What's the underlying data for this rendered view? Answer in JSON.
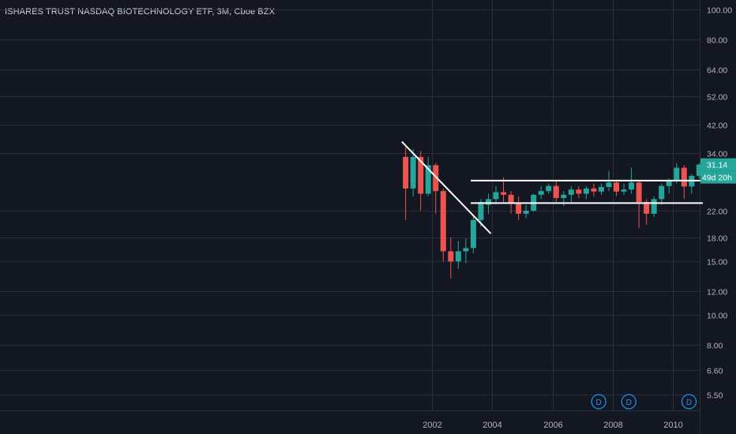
{
  "header": {
    "title": "ISHARES TRUST NASDAQ BIOTECHNOLOGY ETF, 3M, Cboe BZX"
  },
  "colors": {
    "background": "#131722",
    "up": "#26a69a",
    "down": "#ef5350",
    "grid": "#2a2e39",
    "axis_text": "#b2b5be",
    "line": "#ffffff",
    "dividend": "#2196f3"
  },
  "chart_data": {
    "type": "candlestick",
    "interval": "3M",
    "y_scale": "log",
    "ylim": [
      5.0,
      110
    ],
    "y_ticks": [
      100,
      80,
      64,
      52,
      42,
      34,
      22,
      18,
      15,
      12,
      10,
      8,
      6.6,
      5.5
    ],
    "y_tick_labels": [
      "100.00",
      "80.00",
      "64.00",
      "52.00",
      "42.00",
      "34.00",
      "22.00",
      "18.00",
      "15.00",
      "12.00",
      "10.00",
      "8.00",
      "6.60",
      "5.50"
    ],
    "x_range": [
      "2000-10-01",
      "2010-12-31"
    ],
    "x_ticks": [
      "2002",
      "2004",
      "2006",
      "2008",
      "2010"
    ],
    "grid": true,
    "candles": [
      {
        "date": "2001-01-01",
        "open": 33.0,
        "high": 35.5,
        "low": 20.5,
        "close": 26.0
      },
      {
        "date": "2001-04-01",
        "open": 26.0,
        "high": 35.0,
        "low": 24.5,
        "close": 33.0
      },
      {
        "date": "2001-07-01",
        "open": 33.0,
        "high": 34.5,
        "low": 22.0,
        "close": 25.0
      },
      {
        "date": "2001-10-01",
        "open": 25.0,
        "high": 33.0,
        "low": 24.5,
        "close": 31.0
      },
      {
        "date": "2002-01-01",
        "open": 31.0,
        "high": 31.5,
        "low": 21.5,
        "close": 25.5
      },
      {
        "date": "2002-04-01",
        "open": 25.5,
        "high": 26.0,
        "low": 15.0,
        "close": 16.2
      },
      {
        "date": "2002-07-01",
        "open": 16.2,
        "high": 18.0,
        "low": 13.2,
        "close": 15.0
      },
      {
        "date": "2002-10-01",
        "open": 15.0,
        "high": 17.5,
        "low": 14.2,
        "close": 16.2
      },
      {
        "date": "2003-01-01",
        "open": 16.2,
        "high": 17.8,
        "low": 14.8,
        "close": 16.6
      },
      {
        "date": "2003-04-01",
        "open": 16.6,
        "high": 21.0,
        "low": 16.0,
        "close": 20.5
      },
      {
        "date": "2003-07-01",
        "open": 20.5,
        "high": 24.0,
        "low": 19.5,
        "close": 23.5
      },
      {
        "date": "2003-10-01",
        "open": 23.0,
        "high": 25.0,
        "low": 21.5,
        "close": 24.0
      },
      {
        "date": "2004-01-01",
        "open": 24.0,
        "high": 26.5,
        "low": 23.0,
        "close": 25.3
      },
      {
        "date": "2004-04-01",
        "open": 25.3,
        "high": 28.3,
        "low": 23.5,
        "close": 24.8
      },
      {
        "date": "2004-07-01",
        "open": 24.8,
        "high": 25.5,
        "low": 21.5,
        "close": 23.4
      },
      {
        "date": "2004-10-01",
        "open": 23.4,
        "high": 24.5,
        "low": 20.5,
        "close": 21.5
      },
      {
        "date": "2005-01-01",
        "open": 21.5,
        "high": 23.0,
        "low": 20.8,
        "close": 22.0
      },
      {
        "date": "2005-04-01",
        "open": 22.0,
        "high": 25.0,
        "low": 21.8,
        "close": 24.8
      },
      {
        "date": "2005-07-01",
        "open": 24.8,
        "high": 26.5,
        "low": 24.0,
        "close": 25.5
      },
      {
        "date": "2005-10-01",
        "open": 25.5,
        "high": 27.0,
        "low": 25.0,
        "close": 26.5
      },
      {
        "date": "2006-01-01",
        "open": 26.5,
        "high": 27.5,
        "low": 23.5,
        "close": 24.2
      },
      {
        "date": "2006-04-01",
        "open": 24.2,
        "high": 25.5,
        "low": 22.8,
        "close": 24.8
      },
      {
        "date": "2006-07-01",
        "open": 24.8,
        "high": 26.5,
        "low": 23.5,
        "close": 25.8
      },
      {
        "date": "2006-10-01",
        "open": 25.8,
        "high": 26.5,
        "low": 24.2,
        "close": 25.0
      },
      {
        "date": "2007-01-01",
        "open": 25.0,
        "high": 26.5,
        "low": 24.0,
        "close": 26.0
      },
      {
        "date": "2007-04-01",
        "open": 26.0,
        "high": 27.0,
        "low": 24.5,
        "close": 25.4
      },
      {
        "date": "2007-07-01",
        "open": 25.4,
        "high": 27.0,
        "low": 24.8,
        "close": 26.3
      },
      {
        "date": "2007-10-01",
        "open": 26.3,
        "high": 29.7,
        "low": 25.5,
        "close": 27.2
      },
      {
        "date": "2008-01-01",
        "open": 27.2,
        "high": 27.8,
        "low": 24.5,
        "close": 25.4
      },
      {
        "date": "2008-04-01",
        "open": 25.4,
        "high": 27.0,
        "low": 24.8,
        "close": 25.8
      },
      {
        "date": "2008-07-01",
        "open": 25.8,
        "high": 30.4,
        "low": 25.0,
        "close": 27.2
      },
      {
        "date": "2008-10-01",
        "open": 27.2,
        "high": 27.5,
        "low": 19.3,
        "close": 23.5
      },
      {
        "date": "2009-01-01",
        "open": 23.5,
        "high": 24.0,
        "low": 19.8,
        "close": 21.5
      },
      {
        "date": "2009-04-01",
        "open": 21.5,
        "high": 24.5,
        "low": 21.0,
        "close": 24.0
      },
      {
        "date": "2009-07-01",
        "open": 24.0,
        "high": 27.0,
        "low": 23.0,
        "close": 26.5
      },
      {
        "date": "2009-10-01",
        "open": 26.5,
        "high": 28.0,
        "low": 25.0,
        "close": 27.6
      },
      {
        "date": "2010-01-01",
        "open": 27.6,
        "high": 31.5,
        "low": 27.0,
        "close": 30.4
      },
      {
        "date": "2010-04-01",
        "open": 30.4,
        "high": 31.0,
        "low": 24.0,
        "close": 26.4
      },
      {
        "date": "2010-07-01",
        "open": 26.4,
        "high": 29.0,
        "low": 25.0,
        "close": 28.6
      },
      {
        "date": "2010-10-01",
        "open": 28.6,
        "high": 31.5,
        "low": 28.0,
        "close": 31.14
      }
    ],
    "trendlines": [
      {
        "from": {
          "date": "2001-01-01",
          "price": 37.0
        },
        "to": {
          "date": "2003-12-15",
          "price": 18.5
        }
      },
      {
        "from": {
          "date": "2003-04-15",
          "price": 27.6
        },
        "to": {
          "date": "2010-12-31",
          "price": 27.6
        }
      },
      {
        "from": {
          "date": "2003-04-15",
          "price": 23.3
        },
        "to": {
          "date": "2010-12-31",
          "price": 23.3
        }
      }
    ],
    "dividends": [
      {
        "date": "2007-07-15",
        "label": "D"
      },
      {
        "date": "2008-07-15",
        "label": "D"
      },
      {
        "date": "2010-07-15",
        "label": "D"
      }
    ],
    "last_price": {
      "value": 31.14,
      "label": "31.14",
      "countdown": "49d 20h"
    }
  }
}
